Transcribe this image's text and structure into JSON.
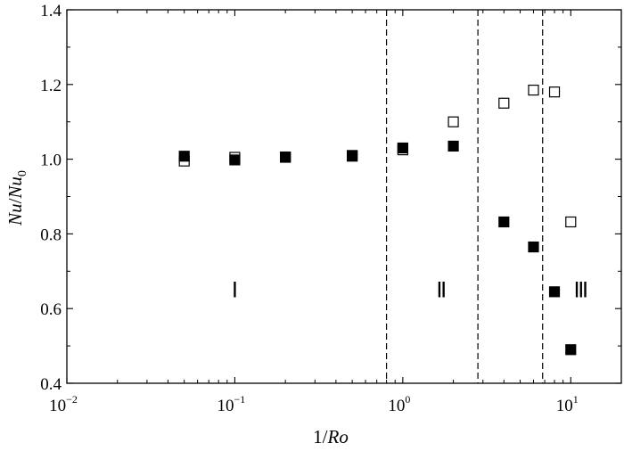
{
  "chart_data": {
    "type": "scatter",
    "title": "",
    "xlabel": {
      "prefix": "1/",
      "italic": "Ro"
    },
    "ylabel": {
      "part1": "Nu",
      "slash": "/",
      "part2": "Nu",
      "subscript": "0"
    },
    "x_scale": "log",
    "xlim": [
      0.01,
      20
    ],
    "ylim": [
      0.4,
      1.4
    ],
    "x_ticks": [
      {
        "value": 0.01,
        "base": "10",
        "exp": "−2"
      },
      {
        "value": 0.1,
        "base": "10",
        "exp": "−1"
      },
      {
        "value": 1,
        "base": "10",
        "exp": "0"
      },
      {
        "value": 10,
        "base": "10",
        "exp": "1"
      }
    ],
    "y_ticks": [
      {
        "value": 0.4,
        "label": "0.4"
      },
      {
        "value": 0.6,
        "label": "0.6"
      },
      {
        "value": 0.8,
        "label": "0.8"
      },
      {
        "value": 1.0,
        "label": "1.0"
      },
      {
        "value": 1.2,
        "label": "1.2"
      },
      {
        "value": 1.4,
        "label": "1.4"
      }
    ],
    "grid": false,
    "legend": "none",
    "series": [
      {
        "marker": "open-square",
        "color": "#000000",
        "x": [
          0.05,
          0.1,
          0.2,
          0.5,
          1.0,
          2.0,
          4.0,
          6.0,
          8.0,
          10.0
        ],
        "y": [
          0.995,
          1.005,
          1.005,
          1.008,
          1.025,
          1.1,
          1.15,
          1.185,
          1.18,
          0.832
        ]
      },
      {
        "marker": "filled-square",
        "color": "#000000",
        "x": [
          0.05,
          0.1,
          0.2,
          0.5,
          1.0,
          2.0,
          4.0,
          6.0,
          8.0,
          10.0
        ],
        "y": [
          1.008,
          0.998,
          1.006,
          1.01,
          1.03,
          1.035,
          0.832,
          0.765,
          0.645,
          0.49
        ]
      }
    ],
    "vlines": [
      0.8,
      2.8,
      6.8
    ],
    "regions": [
      {
        "label": "Ⅰ",
        "x": 0.1,
        "y": 0.65
      },
      {
        "label": "Ⅱ",
        "x": 1.7,
        "y": 0.65
      },
      {
        "label": "Ⅲ",
        "x": 11.5,
        "y": 0.65
      }
    ]
  }
}
